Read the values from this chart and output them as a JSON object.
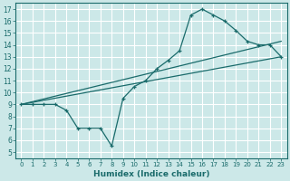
{
  "xlabel": "Humidex (Indice chaleur)",
  "background_color": "#cce8e8",
  "grid_color": "#ffffff",
  "line_color": "#1a6b6b",
  "xlim": [
    -0.5,
    23.5
  ],
  "ylim": [
    4.5,
    17.5
  ],
  "xticks": [
    0,
    1,
    2,
    3,
    4,
    5,
    6,
    7,
    8,
    9,
    10,
    11,
    12,
    13,
    14,
    15,
    16,
    17,
    18,
    19,
    20,
    21,
    22,
    23
  ],
  "yticks": [
    5,
    6,
    7,
    8,
    9,
    10,
    11,
    12,
    13,
    14,
    15,
    16,
    17
  ],
  "line1_x": [
    0,
    1,
    2,
    3,
    4,
    5,
    6,
    7,
    8,
    9,
    10,
    11,
    12,
    13,
    14,
    15,
    16,
    17,
    18,
    19,
    20,
    21,
    22,
    23
  ],
  "line1_y": [
    9.0,
    9.0,
    9.0,
    9.0,
    8.5,
    7.0,
    7.0,
    7.0,
    5.5,
    9.5,
    10.5,
    11.0,
    12.0,
    12.7,
    13.5,
    16.5,
    17.0,
    16.5,
    16.0,
    15.2,
    14.3,
    14.0,
    14.0,
    13.0
  ],
  "line2_x": [
    0,
    23
  ],
  "line2_y": [
    9.0,
    13.0
  ],
  "line3_x": [
    0,
    23
  ],
  "line3_y": [
    9.0,
    14.3
  ]
}
